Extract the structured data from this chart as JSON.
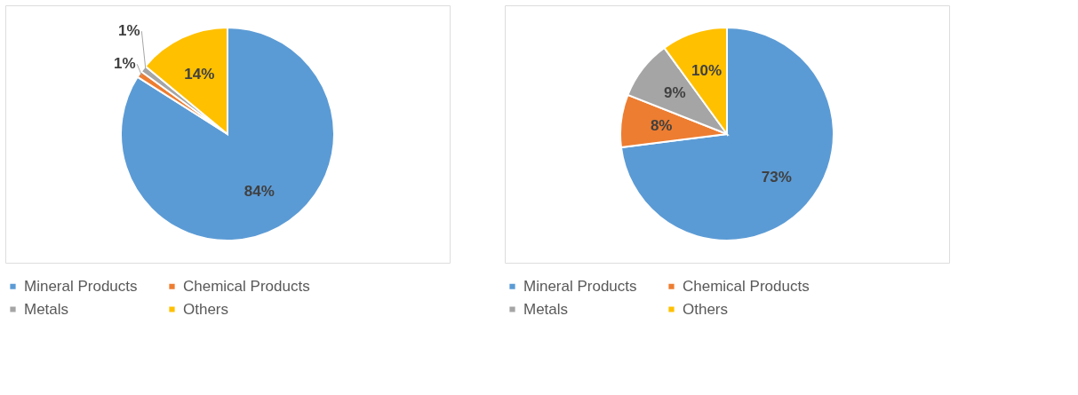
{
  "chart_data": [
    {
      "type": "pie",
      "categories": [
        "Mineral Products",
        "Chemical Products",
        "Metals",
        "Others"
      ],
      "values": [
        84,
        1,
        1,
        14
      ],
      "colors": [
        "#5b9bd5",
        "#ed7d31",
        "#a5a5a5",
        "#ffc000"
      ],
      "value_labels": [
        "84%",
        "1%",
        "1%",
        "14%"
      ],
      "legend": "bottom"
    },
    {
      "type": "pie",
      "categories": [
        "Mineral Products",
        "Chemical Products",
        "Metals",
        "Others"
      ],
      "values": [
        73,
        8,
        9,
        10
      ],
      "colors": [
        "#5b9bd5",
        "#ed7d31",
        "#a5a5a5",
        "#ffc000"
      ],
      "value_labels": [
        "73%",
        "8%",
        "9%",
        "10%"
      ],
      "legend": "bottom"
    }
  ]
}
